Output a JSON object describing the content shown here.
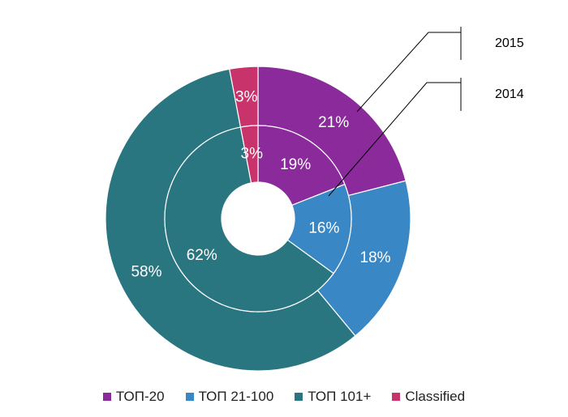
{
  "chart_data": {
    "type": "donut",
    "title": "",
    "categories": [
      "ТОП-20",
      "ТОП 21-100",
      "ТОП 101+",
      "Classified"
    ],
    "colors": [
      "#8a2a9b",
      "#3a87c5",
      "#2a7680",
      "#c8336b"
    ],
    "series": [
      {
        "name": "2015",
        "ring": "outer",
        "values": [
          21,
          18,
          58,
          3
        ],
        "labels": [
          "21%",
          "18%",
          "58%",
          "3%"
        ]
      },
      {
        "name": "2014",
        "ring": "inner",
        "values": [
          19,
          16,
          62,
          3
        ],
        "labels": [
          "19%",
          "16%",
          "62%",
          "3%"
        ]
      }
    ],
    "legend_position": "bottom"
  }
}
